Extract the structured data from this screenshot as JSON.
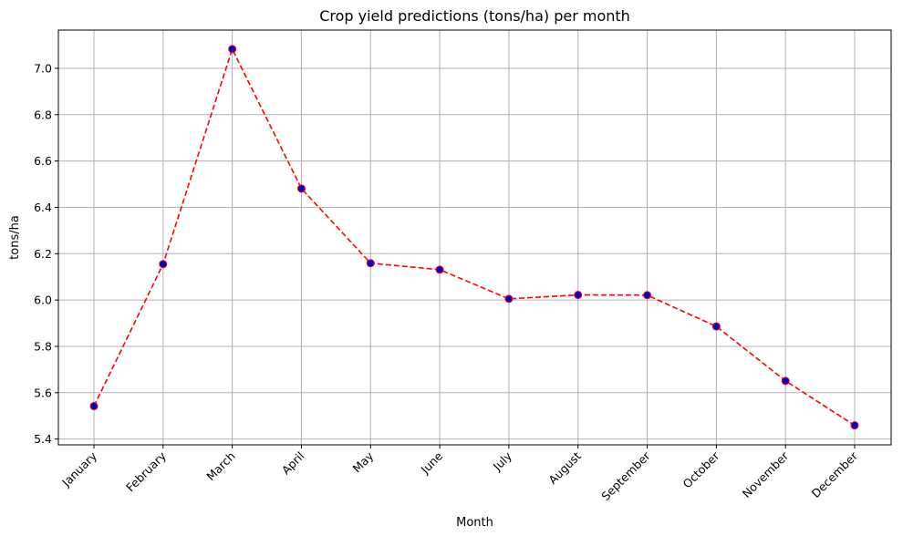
{
  "chart_data": {
    "type": "line",
    "title": "Crop yield predictions (tons/ha) per month",
    "xlabel": "Month",
    "ylabel": "tons/ha",
    "categories": [
      "January",
      "February",
      "March",
      "April",
      "May",
      "June",
      "July",
      "August",
      "September",
      "October",
      "November",
      "December"
    ],
    "series": [
      {
        "values": [
          5.542,
          6.155,
          7.083,
          6.481,
          6.159,
          6.131,
          6.005,
          6.022,
          6.021,
          5.886,
          5.651,
          5.459
        ],
        "line_color": "#ff0000",
        "line_style": "dashed",
        "marker_face_color": "#0000cc",
        "marker_edge_color": "#ff0000"
      }
    ],
    "ylim": [
      5.375,
      7.165
    ],
    "yticks": [
      "5.4",
      "5.6",
      "5.8",
      "6.0",
      "6.2",
      "6.4",
      "6.6",
      "6.8",
      "7.0"
    ],
    "grid": true,
    "legend": "none"
  }
}
